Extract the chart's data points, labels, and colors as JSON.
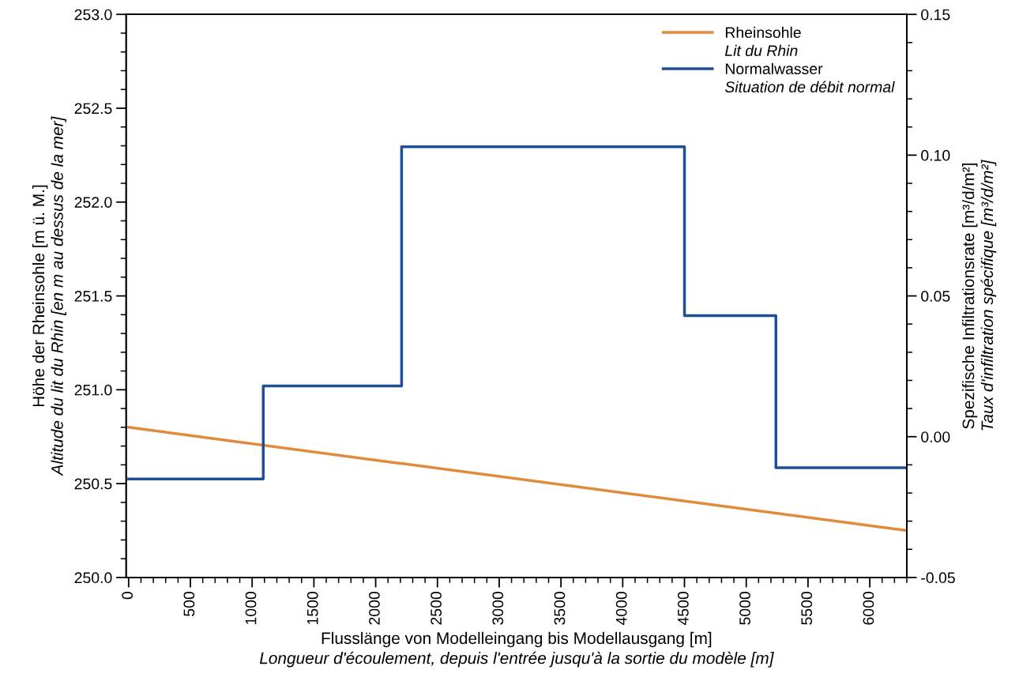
{
  "chart_data": {
    "type": "line",
    "xlabel": "Flusslänge von Modelleingang bis Modellausgang [m]\nLongueur d'écoulement, depuis l'entrée jusqu'à la sortie du modèle [m]",
    "ylabel": "Höhe der Rheinsohle [m ü. M.]\nAltitude du lit du Rhin [en m au dessus de la mer]",
    "y2label": "Spezifische Infiltrationsrate [m³/d/m²]\nTaux d'infiltration spécifique [m³/d/m²]",
    "series": [
      {
        "name": "Rheinsohle\nLit du Rhin",
        "color": "#e08a3c",
        "x": [
          0,
          6300
        ],
        "values": [
          250.8,
          250.25
        ]
      },
      {
        "name": "Normalwasser\nSituation de débit normal",
        "color": "#1f4e96",
        "type": "step",
        "axis": "y2",
        "x": [
          0,
          1090,
          2210,
          4500,
          5240,
          6300
        ],
        "values": [
          -0.015,
          0.018,
          0.103,
          0.043,
          -0.011,
          -0.011
        ]
      }
    ],
    "xlim": [
      -20,
      6300
    ],
    "xticks": [
      0,
      {
        "value": 100,
        "label": null
      },
      {
        "value": 200,
        "label": null
      },
      {
        "value": 300,
        "label": null
      },
      {
        "value": 400,
        "label": null
      },
      500,
      {
        "value": 600,
        "label": null
      },
      {
        "value": 700,
        "label": null
      },
      {
        "value": 800,
        "label": null
      },
      {
        "value": 900,
        "label": null
      },
      1000,
      {
        "value": 1100,
        "label": null
      },
      {
        "value": 1200,
        "label": null
      },
      {
        "value": 1300,
        "label": null
      },
      {
        "value": 1400,
        "label": null
      },
      1500,
      {
        "value": 1600,
        "label": null
      },
      {
        "value": 1700,
        "label": null
      },
      {
        "value": 1800,
        "label": null
      },
      {
        "value": 1900,
        "label": null
      },
      2000,
      {
        "value": 2100,
        "label": null
      },
      {
        "value": 2200,
        "label": null
      },
      {
        "value": 2300,
        "label": null
      },
      {
        "value": 2400,
        "label": null
      },
      2500,
      {
        "value": 2600,
        "label": null
      },
      {
        "value": 2700,
        "label": null
      },
      {
        "value": 2800,
        "label": null
      },
      {
        "value": 2900,
        "label": null
      },
      3000,
      {
        "value": 3100,
        "label": null
      },
      {
        "value": 3200,
        "label": null
      },
      {
        "value": 3300,
        "label": null
      },
      {
        "value": 3400,
        "label": null
      },
      3500,
      {
        "value": 3600,
        "label": null
      },
      {
        "value": 3700,
        "label": null
      },
      {
        "value": 3800,
        "label": null
      },
      {
        "value": 3900,
        "label": null
      },
      4000,
      {
        "value": 4100,
        "label": null
      },
      {
        "value": 4200,
        "label": null
      },
      {
        "value": 4300,
        "label": null
      },
      {
        "value": 4400,
        "label": null
      },
      4500,
      {
        "value": 4600,
        "label": null
      },
      {
        "value": 4700,
        "label": null
      },
      {
        "value": 4800,
        "label": null
      },
      {
        "value": 4900,
        "label": null
      },
      5000,
      {
        "value": 5100,
        "label": null
      },
      {
        "value": 5200,
        "label": null
      },
      {
        "value": 5300,
        "label": null
      },
      {
        "value": 5400,
        "label": null
      },
      5500,
      {
        "value": 5600,
        "label": null
      },
      {
        "value": 5700,
        "label": null
      },
      {
        "value": 5800,
        "label": null
      },
      {
        "value": 5900,
        "label": null
      },
      6000,
      {
        "value": 6100,
        "label": null
      },
      {
        "value": 6200,
        "label": null
      },
      {
        "value": 6300,
        "label": null
      }
    ],
    "ylim": [
      250,
      253
    ],
    "yticks": [
      {
        "value": 250,
        "label": "250.0"
      },
      {
        "value": 250.1,
        "label": null
      },
      {
        "value": 250.2,
        "label": null
      },
      {
        "value": 250.3,
        "label": null
      },
      {
        "value": 250.4,
        "label": null
      },
      {
        "value": 250.5,
        "label": "250.5"
      },
      {
        "value": 250.6,
        "label": null
      },
      {
        "value": 250.7,
        "label": null
      },
      {
        "value": 250.8,
        "label": null
      },
      {
        "value": 250.9,
        "label": null
      },
      {
        "value": 251,
        "label": "251.0"
      },
      {
        "value": 251.1,
        "label": null
      },
      {
        "value": 251.2,
        "label": null
      },
      {
        "value": 251.3,
        "label": null
      },
      {
        "value": 251.4,
        "label": null
      },
      {
        "value": 251.5,
        "label": "251.5"
      },
      {
        "value": 251.6,
        "label": null
      },
      {
        "value": 251.7,
        "label": null
      },
      {
        "value": 251.8,
        "label": null
      },
      {
        "value": 251.9,
        "label": null
      },
      {
        "value": 252,
        "label": "252.0"
      },
      {
        "value": 252.1,
        "label": null
      },
      {
        "value": 252.2,
        "label": null
      },
      {
        "value": 252.3,
        "label": null
      },
      {
        "value": 252.4,
        "label": null
      },
      {
        "value": 252.5,
        "label": "252.5"
      },
      {
        "value": 252.6,
        "label": null
      },
      {
        "value": 252.7,
        "label": null
      },
      {
        "value": 252.8,
        "label": null
      },
      {
        "value": 252.9,
        "label": null
      },
      {
        "value": 253,
        "label": "253.0"
      }
    ],
    "y2lim": [
      -0.05,
      0.15
    ],
    "y2ticks": [
      {
        "value": -0.05,
        "label": "-0.05"
      },
      {
        "value": -0.04,
        "label": null
      },
      {
        "value": -0.03,
        "label": null
      },
      {
        "value": -0.02,
        "label": null
      },
      {
        "value": -0.01,
        "label": null
      },
      {
        "value": 0,
        "label": "0.00"
      },
      {
        "value": 0.01,
        "label": null
      },
      {
        "value": 0.02,
        "label": null
      },
      {
        "value": 0.03,
        "label": null
      },
      {
        "value": 0.04,
        "label": null
      },
      {
        "value": 0.05,
        "label": "0.05"
      },
      {
        "value": 0.06,
        "label": null
      },
      {
        "value": 0.07,
        "label": null
      },
      {
        "value": 0.08,
        "label": null
      },
      {
        "value": 0.09,
        "label": null
      },
      {
        "value": 0.1,
        "label": "0.10"
      },
      {
        "value": 0.11,
        "label": null
      },
      {
        "value": 0.12,
        "label": null
      },
      {
        "value": 0.13,
        "label": null
      },
      {
        "value": 0.14,
        "label": null
      },
      {
        "value": 0.15,
        "label": "0.15"
      }
    ],
    "legend": "top right",
    "grid": false
  }
}
